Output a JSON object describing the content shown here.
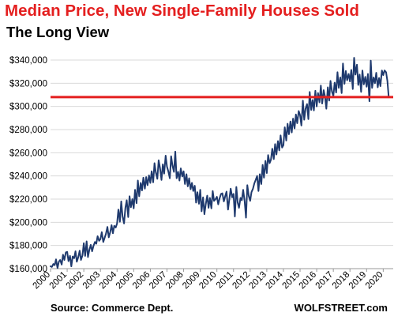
{
  "header": {
    "title": "Median Price, New Single-Family Houses Sold",
    "subtitle": "The Long View"
  },
  "footer": {
    "source": "Source: Commerce Dept.",
    "brand": "WOLFSTREET.com"
  },
  "colors": {
    "title": "#e41f1f",
    "line": "#1f3a6e",
    "reference_line": "#e41f1f",
    "grid": "#d9d9d9"
  },
  "chart_data": {
    "type": "line",
    "title": "Median Price, New Single-Family Houses Sold",
    "subtitle": "The Long View",
    "xlabel": "",
    "ylabel": "",
    "ylim": [
      160000,
      340000
    ],
    "xlim": [
      2000,
      2020.6
    ],
    "grid": "horizontal",
    "y_tick_labels": [
      "$160,000",
      "$180,000",
      "$200,000",
      "$220,000",
      "$240,000",
      "$260,000",
      "$280,000",
      "$300,000",
      "$320,000",
      "$340,000"
    ],
    "y_ticks": [
      160000,
      180000,
      200000,
      220000,
      240000,
      260000,
      280000,
      300000,
      320000,
      340000
    ],
    "x_tick_labels": [
      "2000",
      "2001",
      "2002",
      "2003",
      "2004",
      "2005",
      "2006",
      "2007",
      "2008",
      "2009",
      "2010",
      "2011",
      "2012",
      "2013",
      "2014",
      "2015",
      "2016",
      "2017",
      "2018",
      "2019",
      "2020"
    ],
    "x_ticks": [
      2000,
      2001,
      2002,
      2003,
      2004,
      2005,
      2006,
      2007,
      2008,
      2009,
      2010,
      2011,
      2012,
      2013,
      2014,
      2015,
      2016,
      2017,
      2018,
      2019,
      2020
    ],
    "reference_line": {
      "y": 308000
    },
    "series": [
      {
        "x": [
          2000.0,
          2000.08,
          2000.17,
          2000.25,
          2000.33,
          2000.42,
          2000.5,
          2000.58,
          2000.67,
          2000.75,
          2000.83,
          2000.92,
          2001.0,
          2001.08,
          2001.17,
          2001.25,
          2001.33,
          2001.42,
          2001.5,
          2001.58,
          2001.67,
          2001.75,
          2001.83,
          2001.92,
          2002.0,
          2002.08,
          2002.17,
          2002.25,
          2002.33,
          2002.42,
          2002.5,
          2002.58,
          2002.67,
          2002.75,
          2002.83,
          2002.92,
          2003.0,
          2003.08,
          2003.17,
          2003.25,
          2003.33,
          2003.42,
          2003.5,
          2003.58,
          2003.67,
          2003.75,
          2003.83,
          2003.92,
          2004.0,
          2004.08,
          2004.17,
          2004.25,
          2004.33,
          2004.42,
          2004.5,
          2004.58,
          2004.67,
          2004.75,
          2004.83,
          2004.92,
          2005.0,
          2005.08,
          2005.17,
          2005.25,
          2005.33,
          2005.42,
          2005.5,
          2005.58,
          2005.67,
          2005.75,
          2005.83,
          2005.92,
          2006.0,
          2006.08,
          2006.17,
          2006.25,
          2006.33,
          2006.42,
          2006.5,
          2006.58,
          2006.67,
          2006.75,
          2006.83,
          2006.92,
          2007.0,
          2007.08,
          2007.17,
          2007.25,
          2007.33,
          2007.42,
          2007.5,
          2007.58,
          2007.67,
          2007.75,
          2007.83,
          2007.92,
          2008.0,
          2008.08,
          2008.17,
          2008.25,
          2008.33,
          2008.42,
          2008.5,
          2008.58,
          2008.67,
          2008.75,
          2008.83,
          2008.92,
          2009.0,
          2009.08,
          2009.17,
          2009.25,
          2009.33,
          2009.42,
          2009.5,
          2009.58,
          2009.67,
          2009.75,
          2009.83,
          2009.92,
          2010.0,
          2010.08,
          2010.17,
          2010.25,
          2010.33,
          2010.42,
          2010.5,
          2010.58,
          2010.67,
          2010.75,
          2010.83,
          2010.92,
          2011.0,
          2011.08,
          2011.17,
          2011.25,
          2011.33,
          2011.42,
          2011.5,
          2011.58,
          2011.67,
          2011.75,
          2011.83,
          2011.92,
          2012.0,
          2012.08,
          2012.17,
          2012.25,
          2012.33,
          2012.42,
          2012.5,
          2012.58,
          2012.67,
          2012.75,
          2012.83,
          2012.92,
          2013.0,
          2013.08,
          2013.17,
          2013.25,
          2013.33,
          2013.42,
          2013.5,
          2013.58,
          2013.67,
          2013.75,
          2013.83,
          2013.92,
          2014.0,
          2014.08,
          2014.17,
          2014.25,
          2014.33,
          2014.42,
          2014.5,
          2014.58,
          2014.67,
          2014.75,
          2014.83,
          2014.92,
          2015.0,
          2015.08,
          2015.17,
          2015.25,
          2015.33,
          2015.42,
          2015.5,
          2015.58,
          2015.67,
          2015.75,
          2015.83,
          2015.92,
          2016.0,
          2016.08,
          2016.17,
          2016.25,
          2016.33,
          2016.42,
          2016.5,
          2016.58,
          2016.67,
          2016.75,
          2016.83,
          2016.92,
          2017.0,
          2017.08,
          2017.17,
          2017.25,
          2017.33,
          2017.42,
          2017.5,
          2017.58,
          2017.67,
          2017.75,
          2017.83,
          2017.92,
          2018.0,
          2018.08,
          2018.17,
          2018.25,
          2018.33,
          2018.42,
          2018.5,
          2018.58,
          2018.67,
          2018.75,
          2018.83,
          2018.92,
          2019.0,
          2019.08,
          2019.17,
          2019.25,
          2019.33,
          2019.42,
          2019.5,
          2019.58,
          2019.67,
          2019.75,
          2019.83,
          2019.92,
          2020.0,
          2020.08,
          2020.17,
          2020.25,
          2020.33
        ],
        "y": [
          162000,
          161500,
          164000,
          163000,
          168000,
          160500,
          166000,
          167500,
          163500,
          172000,
          167500,
          174000,
          174500,
          166500,
          171000,
          162000,
          170500,
          169000,
          175000,
          166000,
          170000,
          175500,
          167500,
          171500,
          182000,
          171000,
          183500,
          170000,
          176000,
          180500,
          175000,
          179500,
          183000,
          181500,
          188000,
          184000,
          185500,
          191500,
          183000,
          186500,
          190000,
          196000,
          187000,
          191000,
          197500,
          190500,
          197000,
          195500,
          199000,
          211000,
          200500,
          218000,
          205000,
          199000,
          212500,
          219000,
          204500,
          222500,
          213000,
          220000,
          212000,
          228000,
          216500,
          236000,
          222500,
          234000,
          227500,
          238500,
          229000,
          239000,
          232000,
          240500,
          234000,
          244000,
          234500,
          251000,
          243000,
          237500,
          253500,
          247000,
          236500,
          250000,
          242000,
          257500,
          248000,
          244000,
          238000,
          257000,
          249000,
          243500,
          261000,
          238000,
          243500,
          236000,
          246500,
          239500,
          244000,
          233000,
          241500,
          231000,
          238000,
          228500,
          234000,
          227000,
          231500,
          217000,
          226000,
          216000,
          228000,
          209500,
          221500,
          207000,
          215500,
          223000,
          212500,
          221000,
          212000,
          227000,
          218500,
          220000,
          222000,
          215500,
          221000,
          224500,
          225000,
          218000,
          222500,
          226500,
          211000,
          220000,
          229000,
          221500,
          224500,
          205000,
          230500,
          217000,
          212500,
          221000,
          219000,
          228000,
          218000,
          204000,
          232000,
          222500,
          218500,
          226000,
          229000,
          233500,
          236500,
          240000,
          227000,
          241500,
          233000,
          249500,
          238500,
          253000,
          242500,
          258000,
          251000,
          254000,
          263500,
          254500,
          267500,
          258500,
          270000,
          262000,
          275000,
          264500,
          266500,
          282000,
          270500,
          285000,
          276000,
          287000,
          277500,
          289500,
          281000,
          293000,
          285500,
          296000,
          292500,
          283500,
          305000,
          288500,
          298000,
          302000,
          289000,
          312500,
          297000,
          305500,
          296500,
          313500,
          300000,
          311500,
          303500,
          318000,
          302500,
          314000,
          308500,
          298000,
          316500,
          305000,
          322000,
          312500,
          309000,
          320500,
          312000,
          329500,
          316000,
          325000,
          311500,
          337000,
          319500,
          330500,
          322500,
          328000,
          321500,
          331500,
          315000,
          342000,
          327500,
          336000,
          318500,
          327500,
          312500,
          331000,
          319000,
          325500,
          317000,
          328000,
          304500,
          339500,
          316000,
          325000,
          320000,
          329000,
          316500,
          324500,
          317500,
          331000,
          327000,
          331000,
          329500,
          322000,
          308000
        ]
      }
    ]
  }
}
